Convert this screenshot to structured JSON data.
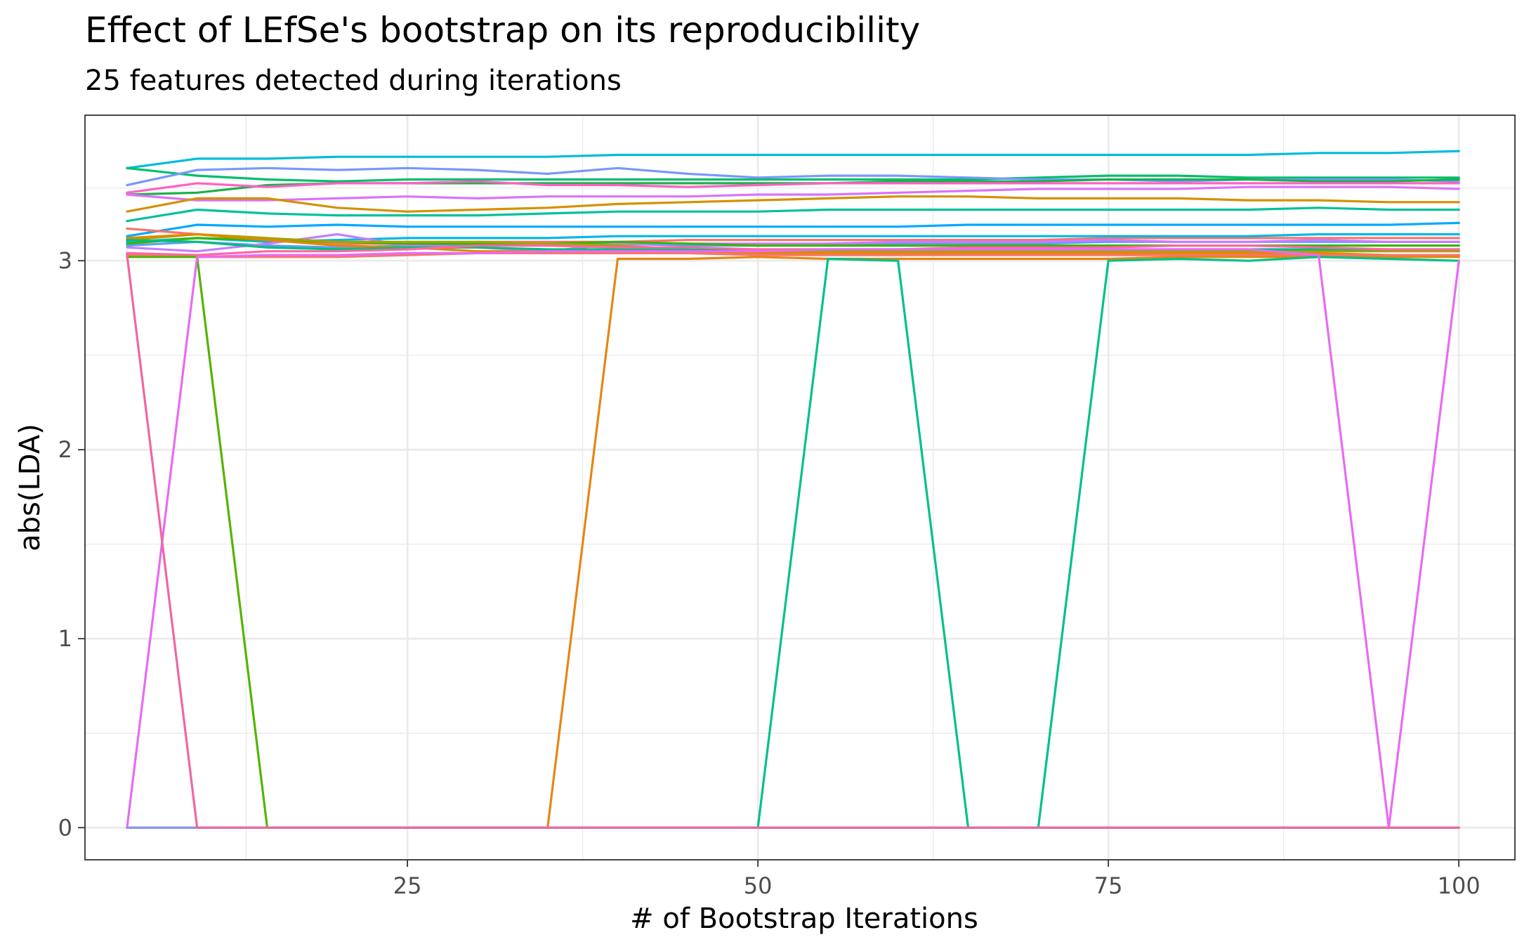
{
  "chart_data": {
    "type": "line",
    "title": "Effect of LEfSe's bootstrap on its reproducibility",
    "subtitle": "25 features detected during iterations",
    "xlabel": "# of Bootstrap Iterations",
    "ylabel": "abs(LDA)",
    "xlim": [
      2,
      104
    ],
    "ylim": [
      -0.17,
      3.77
    ],
    "x_ticks": [
      25,
      50,
      75,
      100
    ],
    "x_tick_labels": [
      "25",
      "50",
      "75",
      "100"
    ],
    "y_ticks": [
      0,
      1,
      2,
      3
    ],
    "y_tick_labels": [
      "0",
      "1",
      "2",
      "3"
    ],
    "grid": true,
    "legend": "none",
    "x": [
      5,
      10,
      15,
      20,
      25,
      30,
      35,
      40,
      45,
      50,
      55,
      60,
      65,
      70,
      75,
      80,
      85,
      90,
      95,
      100
    ],
    "series": [
      {
        "color": "#00BCD8",
        "values": [
          3.49,
          3.54,
          3.54,
          3.55,
          3.55,
          3.55,
          3.55,
          3.56,
          3.56,
          3.56,
          3.56,
          3.56,
          3.56,
          3.56,
          3.56,
          3.56,
          3.56,
          3.57,
          3.57,
          3.58
        ]
      },
      {
        "color": "#00BE6C",
        "values": [
          3.49,
          3.45,
          3.43,
          3.42,
          3.43,
          3.43,
          3.43,
          3.43,
          3.43,
          3.43,
          3.43,
          3.43,
          3.43,
          3.44,
          3.45,
          3.45,
          3.44,
          3.44,
          3.44,
          3.44
        ]
      },
      {
        "color": "#7997FF",
        "values": [
          3.4,
          3.48,
          3.49,
          3.48,
          3.49,
          3.48,
          3.46,
          3.49,
          3.46,
          3.44,
          3.45,
          3.45,
          3.44,
          3.43,
          3.43,
          3.42,
          3.43,
          3.43,
          3.43,
          3.42
        ]
      },
      {
        "color": "#1FB04B",
        "values": [
          3.35,
          3.36,
          3.4,
          3.41,
          3.41,
          3.41,
          3.41,
          3.41,
          3.41,
          3.41,
          3.41,
          3.42,
          3.42,
          3.42,
          3.43,
          3.43,
          3.43,
          3.42,
          3.42,
          3.43
        ]
      },
      {
        "color": "#FF61C3",
        "values": [
          3.36,
          3.41,
          3.39,
          3.41,
          3.41,
          3.42,
          3.4,
          3.4,
          3.39,
          3.4,
          3.41,
          3.41,
          3.41,
          3.41,
          3.41,
          3.41,
          3.41,
          3.41,
          3.41,
          3.41
        ]
      },
      {
        "color": "#DB72FB",
        "values": [
          3.35,
          3.32,
          3.32,
          3.33,
          3.34,
          3.33,
          3.34,
          3.34,
          3.34,
          3.35,
          3.35,
          3.36,
          3.37,
          3.38,
          3.38,
          3.38,
          3.39,
          3.39,
          3.39,
          3.38
        ]
      },
      {
        "color": "#D39200",
        "values": [
          3.26,
          3.33,
          3.33,
          3.28,
          3.26,
          3.27,
          3.28,
          3.3,
          3.31,
          3.32,
          3.33,
          3.34,
          3.34,
          3.33,
          3.33,
          3.33,
          3.32,
          3.32,
          3.31,
          3.31
        ]
      },
      {
        "color": "#00C19A",
        "values": [
          3.21,
          3.27,
          3.25,
          3.24,
          3.24,
          3.24,
          3.25,
          3.26,
          3.26,
          3.26,
          3.27,
          3.27,
          3.27,
          3.27,
          3.27,
          3.27,
          3.27,
          3.28,
          3.27,
          3.27
        ]
      },
      {
        "color": "#00A9FF",
        "values": [
          3.13,
          3.19,
          3.18,
          3.19,
          3.18,
          3.18,
          3.18,
          3.18,
          3.18,
          3.18,
          3.18,
          3.18,
          3.19,
          3.19,
          3.19,
          3.19,
          3.19,
          3.19,
          3.19,
          3.2
        ]
      },
      {
        "color": "#F8766D",
        "values": [
          3.17,
          3.14,
          3.11,
          3.09,
          3.09,
          3.1,
          3.1,
          3.1,
          3.11,
          3.11,
          3.11,
          3.11,
          3.11,
          3.11,
          3.12,
          3.12,
          3.12,
          3.12,
          3.12,
          3.12
        ]
      },
      {
        "color": "#00B8E7",
        "values": [
          3.1,
          3.12,
          3.1,
          3.11,
          3.12,
          3.12,
          3.12,
          3.13,
          3.13,
          3.13,
          3.13,
          3.13,
          3.13,
          3.13,
          3.13,
          3.13,
          3.13,
          3.14,
          3.14,
          3.14
        ]
      },
      {
        "color": "#619CFF",
        "values": [
          3.08,
          3.1,
          3.08,
          3.07,
          3.08,
          3.08,
          3.08,
          3.09,
          3.08,
          3.08,
          3.09,
          3.09,
          3.09,
          3.09,
          3.1,
          3.1,
          3.1,
          3.1,
          3.1,
          3.1
        ]
      },
      {
        "color": "#C77CFF",
        "values": [
          3.07,
          3.05,
          3.09,
          3.14,
          3.08,
          3.07,
          3.05,
          3.09,
          3.09,
          3.09,
          3.09,
          3.1,
          3.1,
          3.1,
          3.11,
          3.1,
          3.1,
          3.11,
          3.1,
          3.1
        ]
      },
      {
        "color": "#39B600",
        "values": [
          3.09,
          3.12,
          3.11,
          3.1,
          3.09,
          3.09,
          3.09,
          3.1,
          3.09,
          3.08,
          3.08,
          3.08,
          3.08,
          3.08,
          3.08,
          3.08,
          3.08,
          3.08,
          3.08,
          3.08
        ]
      },
      {
        "color": "#A3A500",
        "values": [
          3.11,
          3.14,
          3.12,
          3.1,
          3.1,
          3.1,
          3.09,
          3.08,
          3.06,
          3.05,
          3.05,
          3.05,
          3.05,
          3.05,
          3.05,
          3.05,
          3.05,
          3.05,
          3.05,
          3.05
        ]
      },
      {
        "color": "#E58700",
        "values": [
          3.12,
          3.14,
          3.11,
          3.08,
          3.07,
          3.05,
          3.05,
          3.06,
          3.05,
          3.04,
          3.04,
          3.04,
          3.04,
          3.04,
          3.04,
          3.04,
          3.04,
          3.04,
          3.03,
          3.03
        ]
      },
      {
        "color": "#00BF7D",
        "values": [
          3.11,
          3.1,
          3.07,
          3.06,
          3.07,
          3.07,
          3.06,
          3.06,
          3.06,
          3.06,
          3.06,
          3.06,
          3.06,
          3.06,
          3.06,
          3.06,
          3.06,
          3.06,
          3.06,
          3.06
        ]
      },
      {
        "color": "#FF67A4",
        "values": [
          3.04,
          3.03,
          3.05,
          3.05,
          3.06,
          3.08,
          3.08,
          3.07,
          3.07,
          3.06,
          3.06,
          3.06,
          3.07,
          3.07,
          3.07,
          3.08,
          3.08,
          3.07,
          3.06,
          3.06
        ]
      },
      {
        "color": "#F8766D",
        "values": [
          3.03,
          3.02,
          3.02,
          3.02,
          3.03,
          3.04,
          3.04,
          3.04,
          3.04,
          3.03,
          3.03,
          3.03,
          3.03,
          3.03,
          3.03,
          3.03,
          3.03,
          3.03,
          3.03,
          3.03
        ]
      },
      {
        "color": "#53B400",
        "values": [
          3.02,
          3.02,
          0,
          0,
          0,
          0,
          0,
          0,
          0,
          0,
          0,
          0,
          0,
          0,
          0,
          0,
          0,
          0,
          0,
          0
        ]
      },
      {
        "color": "#E68613",
        "values": [
          0,
          0,
          0,
          0,
          0,
          0,
          0,
          3.01,
          3.01,
          3.02,
          3.01,
          3.01,
          3.01,
          3.01,
          3.01,
          3.02,
          3.02,
          3.02,
          3.02,
          3.02
        ]
      },
      {
        "color": "#00C08B",
        "values": [
          0,
          0,
          0,
          0,
          0,
          0,
          0,
          0,
          0,
          0,
          3.01,
          3.0,
          0,
          0,
          3.0,
          3.01,
          3.0,
          3.02,
          3.01,
          3.0
        ]
      },
      {
        "color": "#E76BF3",
        "values": [
          0,
          3.02,
          3.03,
          3.03,
          3.04,
          3.04,
          3.05,
          3.05,
          3.05,
          3.05,
          3.06,
          3.06,
          3.06,
          3.06,
          3.06,
          3.06,
          3.06,
          3.03,
          0,
          3.0
        ]
      },
      {
        "color": "#8F91FF",
        "values": [
          0,
          0,
          0,
          0,
          0,
          0,
          0,
          0,
          0,
          0,
          0,
          0,
          0,
          0,
          0,
          0,
          0,
          0,
          0,
          0
        ]
      },
      {
        "color": "#F066A0",
        "values": [
          3.03,
          0,
          0,
          0,
          0,
          0,
          0,
          0,
          0,
          0,
          0,
          0,
          0,
          0,
          0,
          0,
          0,
          0,
          0,
          0
        ]
      }
    ]
  }
}
